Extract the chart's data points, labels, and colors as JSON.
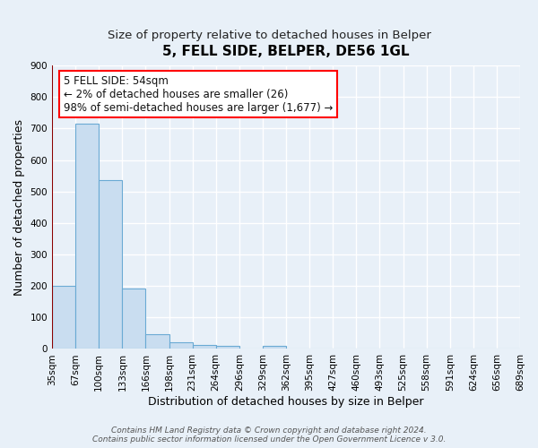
{
  "title": "5, FELL SIDE, BELPER, DE56 1GL",
  "subtitle": "Size of property relative to detached houses in Belper",
  "xlabel": "Distribution of detached houses by size in Belper",
  "ylabel": "Number of detached properties",
  "bar_values": [
    200,
    715,
    535,
    193,
    47,
    20,
    13,
    10,
    0,
    9,
    0,
    0,
    0,
    0,
    0,
    0,
    0,
    0,
    0,
    0
  ],
  "bar_labels": [
    "35sqm",
    "67sqm",
    "100sqm",
    "133sqm",
    "166sqm",
    "198sqm",
    "231sqm",
    "264sqm",
    "296sqm",
    "329sqm",
    "362sqm",
    "395sqm",
    "427sqm",
    "460sqm",
    "493sqm",
    "525sqm",
    "558sqm",
    "591sqm",
    "624sqm",
    "656sqm",
    "689sqm"
  ],
  "bar_color": "#c9ddf0",
  "bar_edge_color": "#6aaad4",
  "ylim": [
    0,
    900
  ],
  "yticks": [
    0,
    100,
    200,
    300,
    400,
    500,
    600,
    700,
    800,
    900
  ],
  "annotation_line1": "5 FELL SIDE: 54sqm",
  "annotation_line2": "← 2% of detached houses are smaller (26)",
  "annotation_line3": "98% of semi-detached houses are larger (1,677) →",
  "footer_text": "Contains HM Land Registry data © Crown copyright and database right 2024.\nContains public sector information licensed under the Open Government Licence v 3.0.",
  "background_color": "#e8f0f8",
  "grid_color": "#d0dde8",
  "title_fontsize": 11,
  "subtitle_fontsize": 9.5,
  "axis_label_fontsize": 9,
  "tick_fontsize": 7.5,
  "annotation_fontsize": 8.5,
  "footer_fontsize": 6.5
}
